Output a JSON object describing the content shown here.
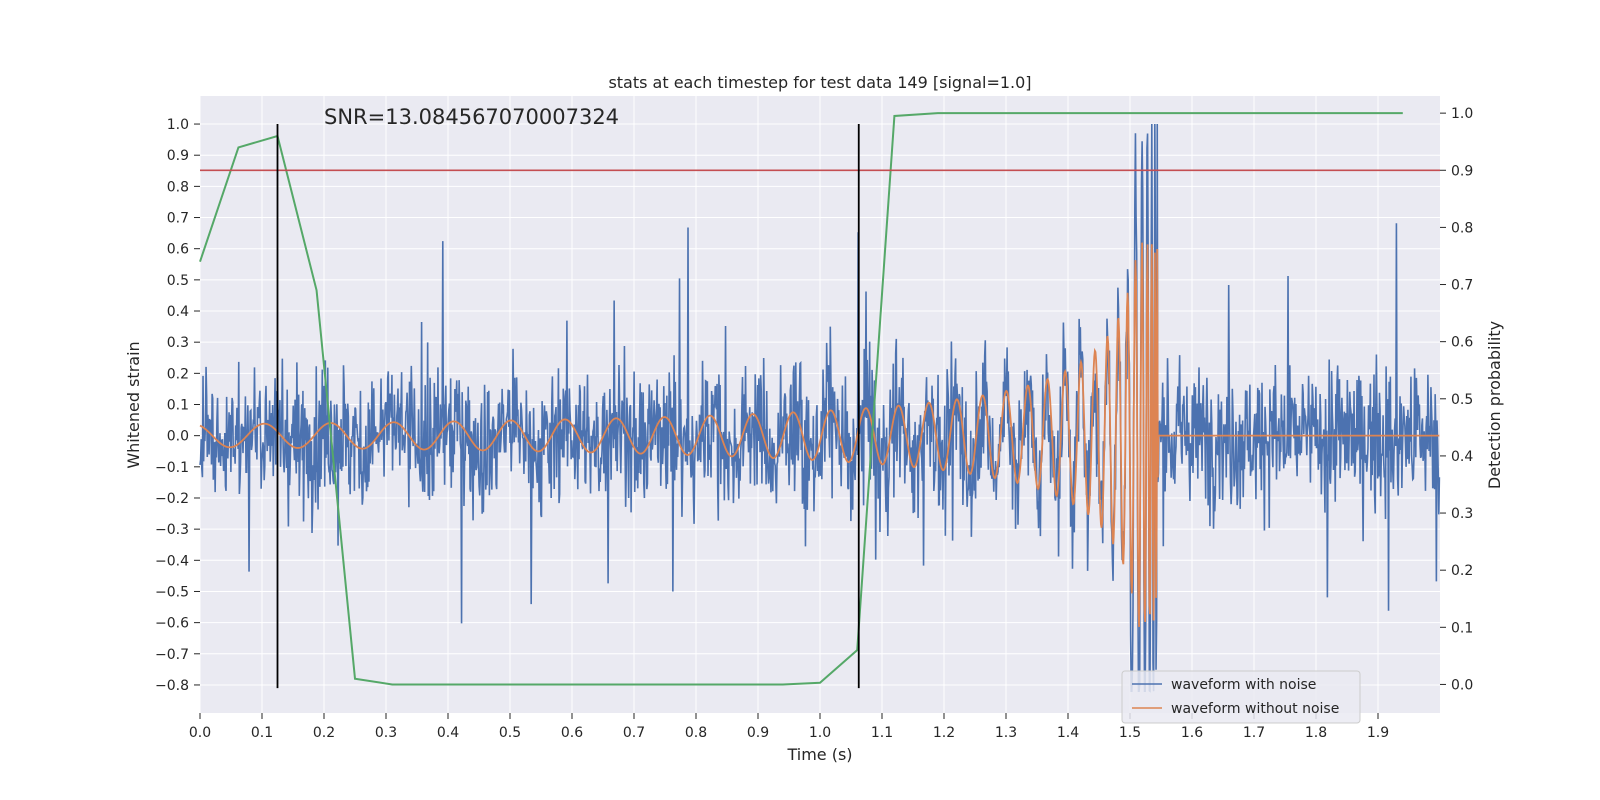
{
  "chart_data": {
    "type": "line",
    "title": "stats at each timestep for test data 149 [signal=1.0]",
    "xlabel": "Time (s)",
    "ylabel_left": "Whitened strain",
    "ylabel_right": "Detection probability",
    "annotation": "SNR=13.084567070007324",
    "xlim": [
      0.0,
      2.0
    ],
    "ylim_left": [
      -0.89,
      1.09
    ],
    "ylim_right": [
      -0.05,
      1.03
    ],
    "xticks": [
      "0.0",
      "0.1",
      "0.2",
      "0.3",
      "0.4",
      "0.5",
      "0.6",
      "0.7",
      "0.8",
      "0.9",
      "1.0",
      "1.1",
      "1.2",
      "1.3",
      "1.4",
      "1.5",
      "1.6",
      "1.7",
      "1.8",
      "1.9"
    ],
    "yticks_left": [
      "1.0",
      "0.9",
      "0.8",
      "0.7",
      "0.6",
      "0.5",
      "0.4",
      "0.3",
      "0.2",
      "0.1",
      "0.0",
      "−0.1",
      "−0.2",
      "−0.3",
      "−0.4",
      "−0.5",
      "−0.6",
      "−0.7",
      "−0.8"
    ],
    "yticks_right": [
      "1.0",
      "0.9",
      "0.8",
      "0.7",
      "0.6",
      "0.5",
      "0.4",
      "0.3",
      "0.2",
      "0.1",
      "0.0"
    ],
    "grid": true,
    "legend_position": "bottom-right",
    "colors": {
      "noisy": "#4c72b0",
      "clean": "#dd8452",
      "probability": "#55a868",
      "threshold": "#c44e52",
      "marker": "#000000",
      "background": "#eaeaf2",
      "grid": "#ffffff"
    },
    "series": [
      {
        "name": "waveform with noise",
        "axis": "left",
        "style": "dense noise, amplitude about ±0.35 with peaks near 0.7, burst to 1.0 near t=1.54"
      },
      {
        "name": "waveform without noise",
        "axis": "left",
        "style": "chirp from 0.03 amplitude at t=0 growing to 0.6 near t=1.54, then 0"
      },
      {
        "axis": "right",
        "x": [
          0.0,
          0.062,
          0.125,
          0.188,
          0.25,
          0.31,
          0.94,
          1.0,
          1.06,
          1.12,
          1.19,
          1.94
        ],
        "values": [
          0.74,
          0.94,
          0.96,
          0.69,
          0.01,
          0.0,
          0.0,
          0.003,
          0.06,
          0.995,
          1.0,
          1.0
        ]
      }
    ],
    "hlines": [
      {
        "axis": "right",
        "y": 0.9
      }
    ],
    "vlines": [
      {
        "x": 0.125,
        "ymin": -0.81,
        "ymax": 1.0
      },
      {
        "x": 1.0625,
        "ymin": -0.81,
        "ymax": 1.0
      }
    ]
  }
}
